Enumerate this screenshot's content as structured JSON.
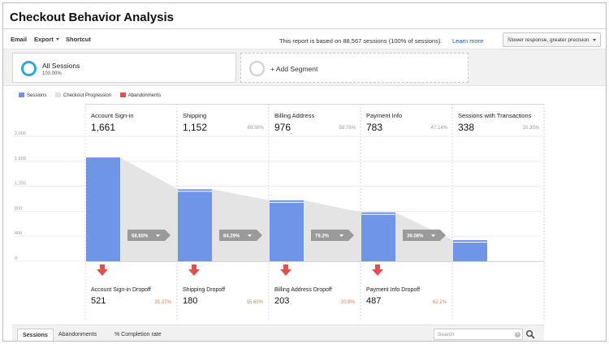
{
  "header": {
    "title": "Checkout Behavior Analysis"
  },
  "toolbar": {
    "email_label": "Email",
    "export_label": "Export",
    "shortcut_label": "Shortcut",
    "report_note": "This report is based on 88,567 sessions (100% of sessions).",
    "learn_more_label": "Learn more",
    "precision_label": "Slower response, greater precision"
  },
  "segments": {
    "active": {
      "name": "All Sessions",
      "percent": "100.00%"
    },
    "add_label": "+ Add Segment"
  },
  "legend": {
    "items": [
      {
        "label": "Sessions",
        "color": "#6f95e6"
      },
      {
        "label": "Checkout Progression",
        "color": "#e2e2e2"
      },
      {
        "label": "Abandonments",
        "color": "#d9534f"
      }
    ]
  },
  "chart_data": {
    "type": "bar",
    "y_ticks": [
      "2,000",
      "1,600",
      "1,200",
      "800",
      "400",
      "0"
    ],
    "ylim": [
      0,
      2000
    ],
    "grid": true,
    "stages": [
      {
        "name": "Account Sign-in",
        "value": 1661,
        "value_label": "1,661",
        "percent": ""
      },
      {
        "name": "Shipping",
        "value": 1152,
        "value_label": "1,152",
        "percent": "69.36%"
      },
      {
        "name": "Billing Address",
        "value": 976,
        "value_label": "976",
        "percent": "58.76%"
      },
      {
        "name": "Payment Info",
        "value": 783,
        "value_label": "783",
        "percent": "47.14%"
      },
      {
        "name": "Sessions with Transactions",
        "value": 338,
        "value_label": "338",
        "percent": "20.35%"
      }
    ],
    "progression": [
      "68.65%",
      "84.29%",
      "79.2%",
      "39.08%"
    ],
    "dropoffs": [
      {
        "name": "Account Sign-in Dropoff",
        "value": "521",
        "percent": "31.37%"
      },
      {
        "name": "Shipping Dropoff",
        "value": "180",
        "percent": "15.62%"
      },
      {
        "name": "Billing Address Dropoff",
        "value": "203",
        "percent": "20.8%"
      },
      {
        "name": "Payment Info Dropoff",
        "value": "487",
        "percent": "62.2%"
      }
    ],
    "colors": {
      "bar": "#6f95e6",
      "progression": "#e4e4e4",
      "arrow": "#9a9a9a",
      "drop_arrow": "#d9534f"
    }
  },
  "bottom": {
    "tabs": [
      "Sessions",
      "Abandonments"
    ],
    "completion_label": "% Completion rate",
    "search_placeholder": "Search"
  }
}
